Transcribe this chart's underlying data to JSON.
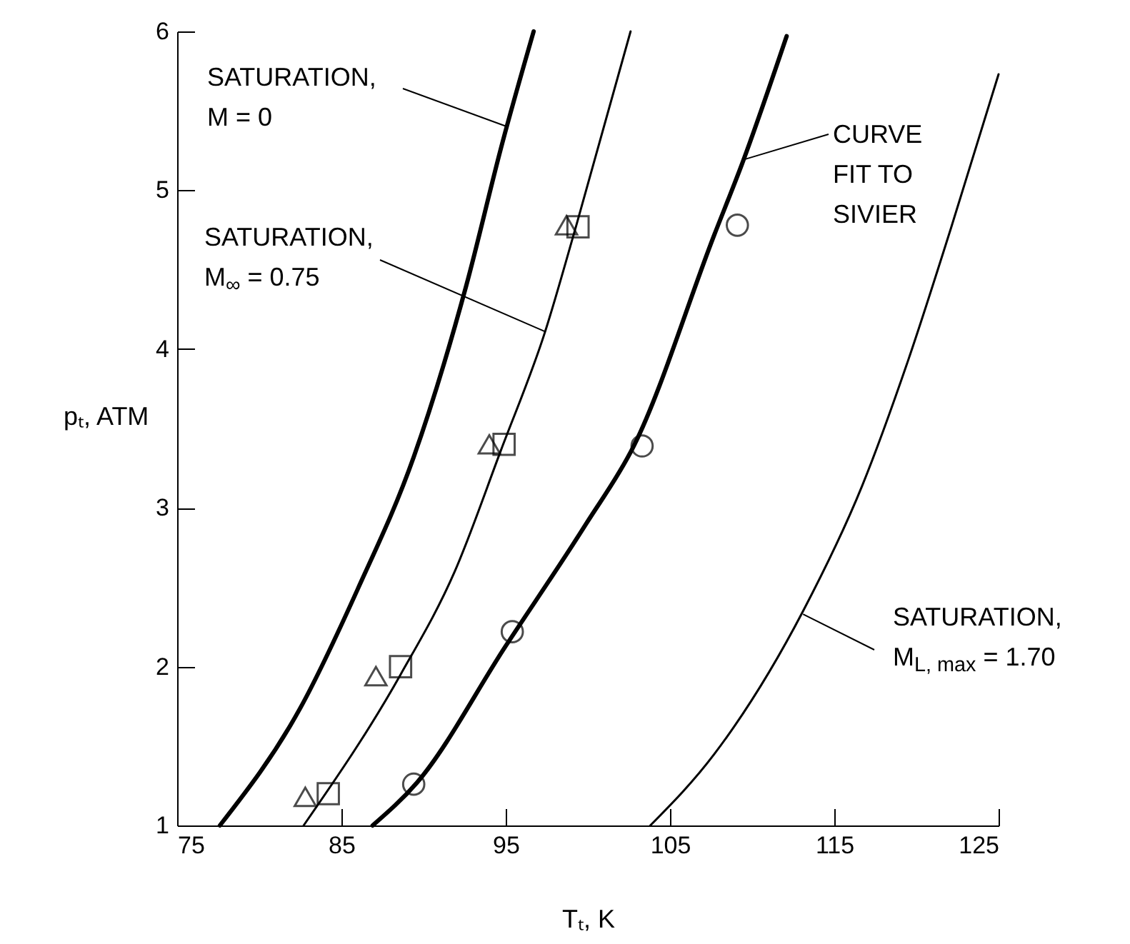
{
  "chart_data": {
    "type": "line",
    "xlabel": "Tₜ, K",
    "ylabel": "pₜ, ATM",
    "xlim": [
      75,
      125
    ],
    "xticks": [
      75,
      85,
      95,
      105,
      115,
      125
    ],
    "ylim": [
      1,
      6
    ],
    "yticks": [
      1,
      2,
      3,
      4,
      5,
      6
    ],
    "series": [
      {
        "color": "#000000",
        "line_style": "solid",
        "x": [
          77.6,
          82.5,
          86.0,
          89.4,
          92.6,
          94.8,
          96.7
        ],
        "values": [
          1,
          1.74,
          2.49,
          3.32,
          4.4,
          5.3,
          6.0
        ]
      },
      {
        "color": "#000000",
        "line_style": "solid",
        "x": [
          82.7,
          88.6,
          91.9,
          94.7,
          97.4,
          99.3,
          102.6
        ],
        "values": [
          1,
          1.95,
          2.6,
          3.36,
          4.11,
          4.78,
          6.0
        ]
      },
      {
        "color": "#000000",
        "line_style": "solid",
        "x": [
          86.9,
          89.6,
          95.0,
          99.9,
          102.8,
          107.7,
          109.4,
          112.1
        ],
        "values": [
          1,
          1.27,
          2.13,
          2.9,
          3.39,
          4.72,
          5.17,
          5.97
        ]
      },
      {
        "color": "#000000",
        "line_style": "solid",
        "x": [
          103.8,
          107.7,
          113.1,
          116.7,
          119.5,
          122.1,
          125
        ],
        "values": [
          1,
          1.45,
          2.35,
          3.14,
          3.93,
          4.76,
          5.73
        ]
      },
      {
        "type": "scatter",
        "color": "#000000",
        "marker": "triangle",
        "x": [
          82.8,
          87.1,
          94.0,
          98.7
        ],
        "values": [
          1.18,
          1.94,
          3.4,
          4.78
        ]
      },
      {
        "type": "scatter",
        "color": "#000000",
        "marker": "square",
        "x": [
          84.2,
          88.6,
          94.9,
          99.4
        ],
        "values": [
          1.2,
          2.0,
          3.4,
          4.77
        ]
      },
      {
        "type": "scatter",
        "color": "#000000",
        "marker": "circle",
        "x": [
          89.4,
          95.4,
          103.3,
          109.1
        ],
        "values": [
          1.26,
          2.22,
          3.39,
          4.78
        ]
      }
    ],
    "annotations": [
      {
        "text": "SATURATION,\nM = 0",
        "x": 95.1,
        "y": 5.4
      },
      {
        "text": "SATURATION,\nM$_{∞}$ = 0.75",
        "x": 97.4,
        "y": 4.11
      },
      {
        "text": "CURVE\nFIT TO\nSIVIER",
        "x": 109.4,
        "y": 5.19
      },
      {
        "text": "SATURATION,\nM$_{L, max}$ = 1.70",
        "x": 113.1,
        "y": 2.33
      }
    ],
    "grid": false
  }
}
